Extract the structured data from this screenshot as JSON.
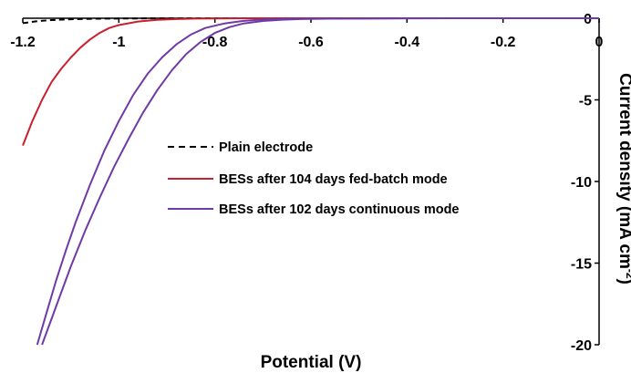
{
  "chart_data": {
    "type": "line",
    "xlabel": "Potential (V)",
    "ylabel": "Current density (mA cm",
    "ylabel_sup": "-2",
    "ylabel_close": ")",
    "xlim": [
      -1.2,
      0
    ],
    "ylim": [
      -20,
      0
    ],
    "x_ticks": [
      {
        "value": -1.2,
        "label": "-1.2"
      },
      {
        "value": -1.0,
        "label": "-1"
      },
      {
        "value": -0.8,
        "label": "-0.8"
      },
      {
        "value": -0.6,
        "label": "-0.6"
      },
      {
        "value": -0.4,
        "label": "-0.4"
      },
      {
        "value": -0.2,
        "label": "-0.2"
      },
      {
        "value": 0,
        "label": "0"
      }
    ],
    "y_ticks": [
      {
        "value": 0,
        "label": "0"
      },
      {
        "value": -5,
        "label": "-5"
      },
      {
        "value": -10,
        "label": "-10"
      },
      {
        "value": -15,
        "label": "-15"
      },
      {
        "value": -20,
        "label": "-20"
      }
    ],
    "x_axis_position": "top",
    "y_axis_position": "right",
    "grid": false,
    "legend_position": "center",
    "series": [
      {
        "name": "Plain electrode",
        "color": "#000000",
        "style": "dashed",
        "points": [
          [
            -1.2,
            -0.3
          ],
          [
            -1.17,
            -0.18
          ],
          [
            -1.14,
            -0.11
          ],
          [
            -1.1,
            -0.06
          ],
          [
            -1.05,
            -0.03
          ],
          [
            -1.0,
            -0.015
          ],
          [
            -0.9,
            -0.005
          ],
          [
            -0.8,
            0
          ],
          [
            -0.6,
            0
          ],
          [
            -0.4,
            0
          ],
          [
            -0.2,
            0
          ],
          [
            0,
            0
          ]
        ]
      },
      {
        "name": "BESs after 104 days fed-batch mode",
        "color": "#c8202e",
        "style": "solid",
        "points": [
          [
            -1.2,
            -7.8
          ],
          [
            -1.18,
            -6.3
          ],
          [
            -1.16,
            -5.0
          ],
          [
            -1.14,
            -3.9
          ],
          [
            -1.12,
            -3.1
          ],
          [
            -1.1,
            -2.4
          ],
          [
            -1.08,
            -1.8
          ],
          [
            -1.06,
            -1.3
          ],
          [
            -1.04,
            -0.9
          ],
          [
            -1.02,
            -0.6
          ],
          [
            -1.0,
            -0.42
          ],
          [
            -0.96,
            -0.2
          ],
          [
            -0.92,
            -0.1
          ],
          [
            -0.88,
            -0.05
          ],
          [
            -0.84,
            -0.02
          ],
          [
            -0.8,
            -0.01
          ],
          [
            -0.7,
            0
          ],
          [
            -0.5,
            0
          ],
          [
            -0.3,
            0
          ],
          [
            0,
            0
          ]
        ]
      },
      {
        "name": "BESs after 102 days continuous mode",
        "color": "#6f3aa6",
        "style": "solid",
        "points": [
          [
            -1.17,
            -20.0
          ],
          [
            -1.15,
            -18.0
          ],
          [
            -1.13,
            -16.0
          ],
          [
            -1.11,
            -14.2
          ],
          [
            -1.09,
            -12.5
          ],
          [
            -1.06,
            -10.2
          ],
          [
            -1.03,
            -8.1
          ],
          [
            -1.0,
            -6.3
          ],
          [
            -0.97,
            -4.7
          ],
          [
            -0.94,
            -3.4
          ],
          [
            -0.91,
            -2.4
          ],
          [
            -0.88,
            -1.6
          ],
          [
            -0.85,
            -1.0
          ],
          [
            -0.82,
            -0.6
          ],
          [
            -0.78,
            -0.32
          ],
          [
            -0.74,
            -0.16
          ],
          [
            -0.7,
            -0.08
          ],
          [
            -0.65,
            -0.04
          ],
          [
            -0.6,
            -0.02
          ],
          [
            -0.5,
            -0.01
          ],
          [
            -0.4,
            0
          ],
          [
            -0.2,
            0
          ],
          [
            0,
            0
          ]
        ]
      },
      {
        "name": "",
        "color": "#6f3aa6",
        "style": "solid",
        "points": [
          [
            -1.16,
            -20.0
          ],
          [
            -1.13,
            -17.6
          ],
          [
            -1.1,
            -15.2
          ],
          [
            -1.07,
            -13.0
          ],
          [
            -1.04,
            -11.0
          ],
          [
            -1.01,
            -9.1
          ],
          [
            -0.98,
            -7.4
          ],
          [
            -0.95,
            -5.8
          ],
          [
            -0.92,
            -4.4
          ],
          [
            -0.89,
            -3.2
          ],
          [
            -0.86,
            -2.2
          ],
          [
            -0.83,
            -1.45
          ],
          [
            -0.8,
            -0.9
          ],
          [
            -0.77,
            -0.55
          ],
          [
            -0.74,
            -0.32
          ],
          [
            -0.7,
            -0.17
          ],
          [
            -0.66,
            -0.09
          ],
          [
            -0.62,
            -0.05
          ],
          [
            -0.55,
            -0.02
          ],
          [
            -0.45,
            -0.01
          ],
          [
            -0.3,
            0
          ],
          [
            -0.15,
            0
          ],
          [
            0,
            0
          ]
        ]
      }
    ]
  }
}
